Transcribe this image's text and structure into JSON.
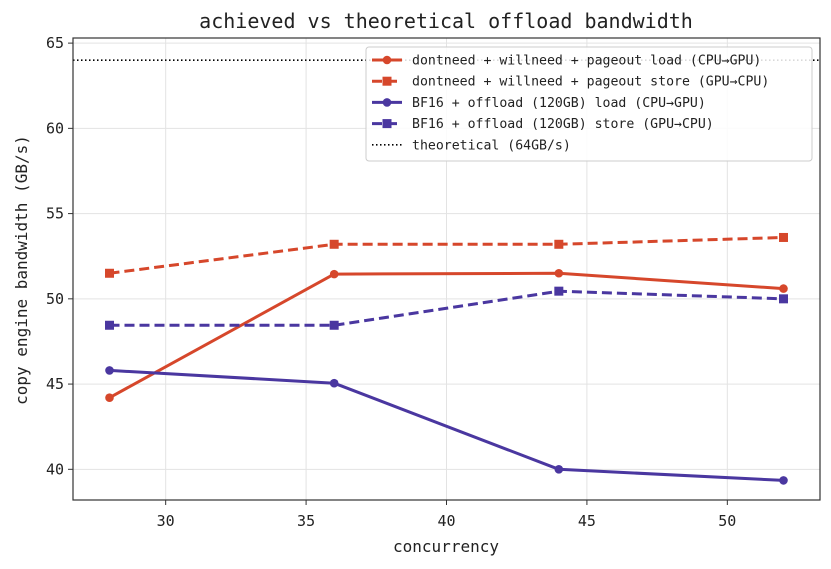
{
  "chart_data": {
    "type": "line",
    "title": "achieved vs theoretical offload bandwidth",
    "xlabel": "concurrency",
    "ylabel": "copy engine bandwidth (GB/s)",
    "xlim": [
      26.7,
      53.3
    ],
    "ylim": [
      38.2,
      65.3
    ],
    "xticks": [
      30,
      35,
      40,
      45,
      50
    ],
    "yticks": [
      40,
      45,
      50,
      55,
      60,
      65
    ],
    "grid": true,
    "legend_position": "top-right",
    "series": [
      {
        "name": "dontneed + willneed + pageout load (CPU→GPU)",
        "color": "#d6472b",
        "dash": "solid",
        "marker": "circle",
        "x": [
          28,
          36,
          44,
          52
        ],
        "y": [
          44.2,
          51.45,
          51.5,
          50.6
        ]
      },
      {
        "name": "dontneed + willneed + pageout store (GPU→CPU)",
        "color": "#d6472b",
        "dash": "dashed",
        "marker": "square",
        "x": [
          28,
          36,
          44,
          52
        ],
        "y": [
          51.5,
          53.2,
          53.2,
          53.6
        ]
      },
      {
        "name": "BF16 + offload (120GB) load (CPU→GPU)",
        "color": "#4a37a0",
        "dash": "solid",
        "marker": "circle",
        "x": [
          28,
          36,
          44,
          52
        ],
        "y": [
          45.8,
          45.05,
          40.0,
          39.35
        ]
      },
      {
        "name": "BF16 + offload (120GB) store (GPU→CPU)",
        "color": "#4a37a0",
        "dash": "dashed",
        "marker": "square",
        "x": [
          28,
          36,
          44,
          52
        ],
        "y": [
          48.45,
          48.45,
          50.45,
          50.0
        ]
      }
    ],
    "reference_line": {
      "name": "theoretical (64GB/s)",
      "y": 64,
      "color": "#000000",
      "dash": "dotted"
    }
  }
}
